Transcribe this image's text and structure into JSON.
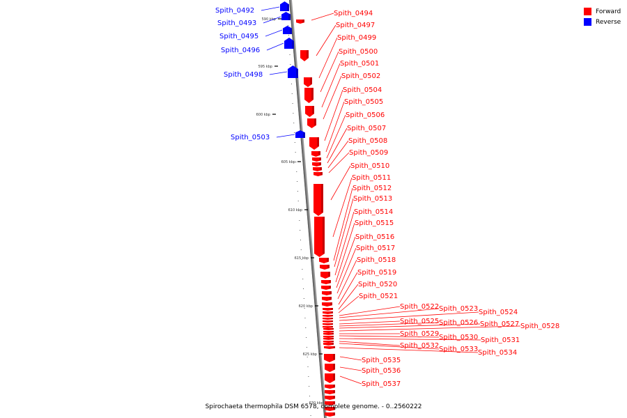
{
  "caption": "Spirochaeta thermophila DSM 6578, complete genome. - 0..2560222",
  "legend": [
    {
      "label": "Forward",
      "color": "#ff0000"
    },
    {
      "label": "Reverse",
      "color": "#0000ff"
    }
  ],
  "ticks": [
    "590 kbp",
    "595 kbp",
    "600 kbp",
    "605 kbp",
    "610 kbp",
    "615 kbp",
    "620 kbp",
    "625 kbp",
    "630 kbp"
  ],
  "forward_genes": [
    "Spith_0494",
    "Spith_0497",
    "Spith_0499",
    "Spith_0500",
    "Spith_0501",
    "Spith_0502",
    "Spith_0504",
    "Spith_0505",
    "Spith_0506",
    "Spith_0507",
    "Spith_0508",
    "Spith_0509",
    "Spith_0510",
    "Spith_0511",
    "Spith_0512",
    "Spith_0513",
    "Spith_0514",
    "Spith_0515",
    "Spith_0516",
    "Spith_0517",
    "Spith_0518",
    "Spith_0519",
    "Spith_0520",
    "Spith_0521",
    "Spith_0522",
    "Spith_0523",
    "Spith_0524",
    "Spith_0525",
    "Spith_0526",
    "Spith_0527",
    "Spith_0528",
    "Spith_0529",
    "Spith_0530",
    "Spith_0531",
    "Spith_0532",
    "Spith_0533",
    "Spith_0534",
    "Spith_0535",
    "Spith_0536",
    "Spith_0537"
  ],
  "reverse_genes": [
    "Spith_0492",
    "Spith_0493",
    "Spith_0495",
    "Spith_0496",
    "Spith_0498",
    "Spith_0503"
  ]
}
